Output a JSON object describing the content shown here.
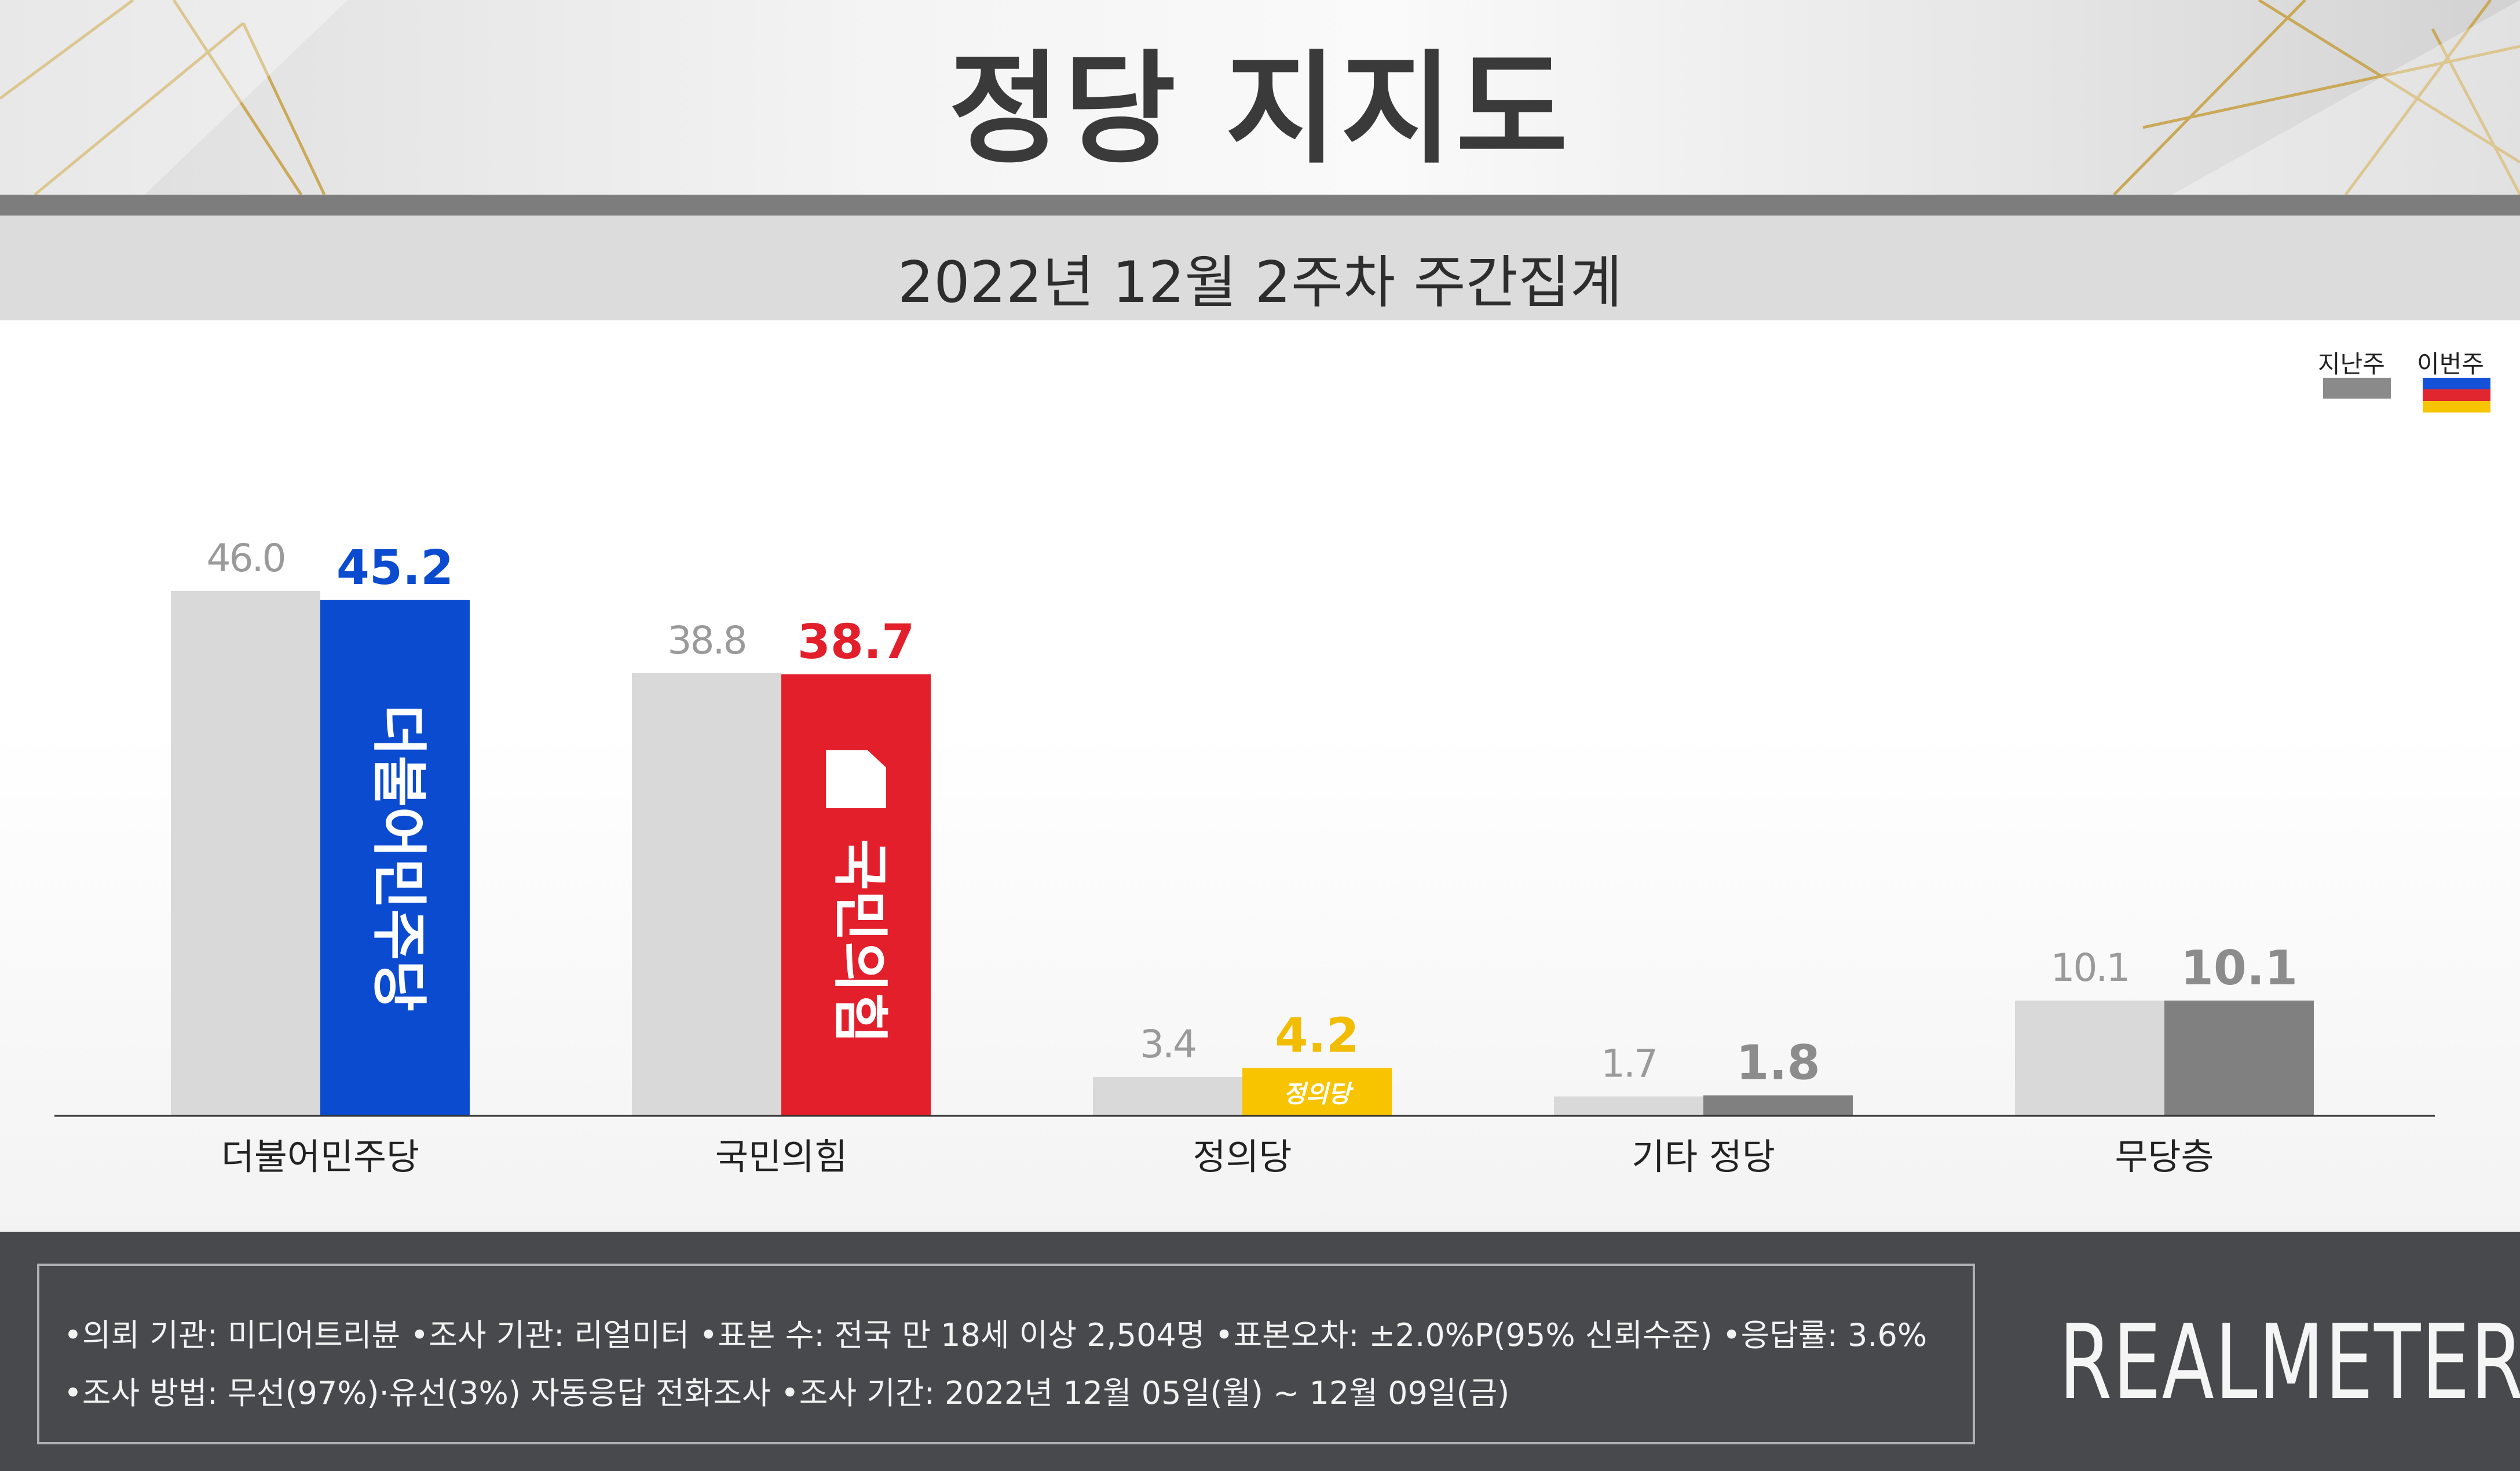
{
  "header": {
    "title": "정당 지지도",
    "subtitle": "2022년 12월 2주차 주간집계"
  },
  "legend": {
    "last_week": "지난주",
    "this_week": "이번주"
  },
  "colors": {
    "last_week_bar": "#d9d9d9",
    "minjoo": "#0a4bd0",
    "ppp": "#e21f2b",
    "justice": "#f8c400",
    "neutral_dark": "#7f7f7f",
    "label_gray": "#9a9a9a",
    "legend_blue": "#1450d8",
    "legend_red": "#e2262f",
    "legend_yellow": "#f6c400"
  },
  "chart_data": {
    "type": "bar",
    "title": "정당 지지도",
    "subtitle": "2022년 12월 2주차 주간집계",
    "categories": [
      "더불어민주당",
      "국민의힘",
      "정의당",
      "기타 정당",
      "무당층"
    ],
    "series": [
      {
        "name": "지난주",
        "values": [
          46.0,
          38.8,
          3.4,
          1.7,
          10.1
        ],
        "labels": [
          "46.0",
          "38.8",
          "3.4",
          "1.7",
          "10.1"
        ]
      },
      {
        "name": "이번주",
        "values": [
          45.2,
          38.7,
          4.2,
          1.8,
          10.1
        ],
        "labels": [
          "45.2",
          "38.7",
          "4.2",
          "1.8",
          "10.1"
        ]
      }
    ],
    "this_week_colors": [
      "#0a4bd0",
      "#e21f2b",
      "#f8c400",
      "#808080",
      "#808080"
    ],
    "this_week_label_colors": [
      "#0a4bd0",
      "#e21f2b",
      "#f2bd00",
      "#8c8c8c",
      "#8c8c8c"
    ],
    "bar_logos": [
      "더불어민주당",
      "국민의힘",
      "정의당",
      "",
      ""
    ],
    "ylim": [
      0,
      46.0
    ],
    "grid": false,
    "legend_position": "top-right"
  },
  "footer": {
    "line1": "•의뢰 기관: 미디어트리뷴  •조사 기관: 리얼미터 •표본 수: 전국 만 18세 이상 2,504명 •표본오차: ±2.0%P(95% 신뢰수준) •응답률: 3.6%",
    "line2": "•조사 방법: 무선(97%)·유선(3%) 자동응답 전화조사 •조사 기간: 2022년 12월 05일(월) ~ 12월 09일(금)",
    "brand": "REALMETER"
  }
}
